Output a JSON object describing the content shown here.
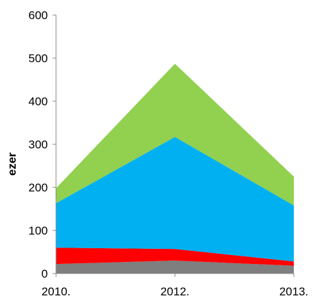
{
  "chart_data": {
    "type": "area",
    "stacked": true,
    "x": [
      "2010.",
      "2012.",
      "2013."
    ],
    "ylabel": "ezer",
    "ylim": [
      0,
      600
    ],
    "yticks": [
      "0",
      "100",
      "200",
      "300",
      "400",
      "500",
      "600"
    ],
    "grid": false,
    "legend": "none",
    "series": [
      {
        "values": [
          22,
          30,
          18
        ],
        "color": "#7f7f7f"
      },
      {
        "values": [
          38,
          27,
          10
        ],
        "color": "#ff0000"
      },
      {
        "values": [
          103,
          260,
          130
        ],
        "color": "#00b0f0"
      },
      {
        "values": [
          35,
          170,
          67
        ],
        "color": "#92d050"
      }
    ],
    "axis_color": "#868686"
  }
}
